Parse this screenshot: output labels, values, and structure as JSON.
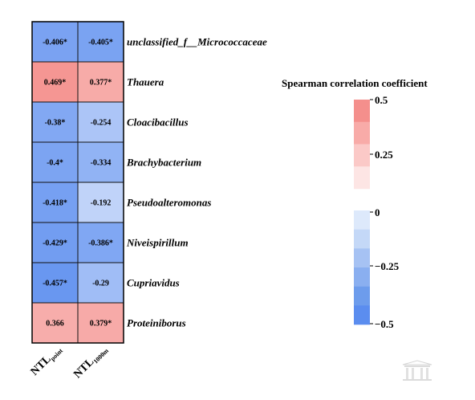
{
  "chart_data": {
    "type": "heatmap",
    "columns": [
      {
        "main": "NTL",
        "sub": "point"
      },
      {
        "main": "NTL",
        "sub": "1000m"
      }
    ],
    "rows": [
      {
        "label": "unclassified_f__Micrococcaceae",
        "values": [
          -0.406,
          -0.405
        ],
        "texts": [
          "-0.406*",
          "-0.405*"
        ]
      },
      {
        "label": "Thauera",
        "values": [
          0.469,
          0.377
        ],
        "texts": [
          "0.469*",
          "0.377*"
        ]
      },
      {
        "label": "Cloacibacillus",
        "values": [
          -0.38,
          -0.254
        ],
        "texts": [
          "-0.38*",
          "-0.254"
        ]
      },
      {
        "label": "Brachybacterium",
        "values": [
          -0.4,
          -0.334
        ],
        "texts": [
          "-0.4*",
          "-0.334"
        ]
      },
      {
        "label": "Pseudoalteromonas",
        "values": [
          -0.418,
          -0.192
        ],
        "texts": [
          "-0.418*",
          "-0.192"
        ]
      },
      {
        "label": "Niveispirillum",
        "values": [
          -0.429,
          -0.386
        ],
        "texts": [
          "-0.429*",
          "-0.386*"
        ]
      },
      {
        "label": "Cupriavidus",
        "values": [
          -0.457,
          -0.29
        ],
        "texts": [
          "-0.457*",
          "-0.29"
        ]
      },
      {
        "label": "Proteiniborus",
        "values": [
          0.366,
          0.379
        ],
        "texts": [
          "0.366",
          "0.379*"
        ]
      }
    ],
    "legend": {
      "title": "Spearman correlation coefficient",
      "range": [
        -0.5,
        0.5
      ],
      "ticks": [
        "0.5",
        "0.25",
        "0",
        "−0.25",
        "−0.5"
      ],
      "positive_bins": [
        "#f48f8c",
        "#f8aba8",
        "#fbc9c7",
        "#fde5e4"
      ],
      "negative_bins": [
        "#dde9fb",
        "#c4d8f7",
        "#a6c2f3",
        "#8aaff0",
        "#6d9cec",
        "#5b8def"
      ]
    },
    "colors": {
      "neg_max": "#5b8def",
      "pos_max": "#f48f8c",
      "neutral": "#ffffff"
    }
  }
}
